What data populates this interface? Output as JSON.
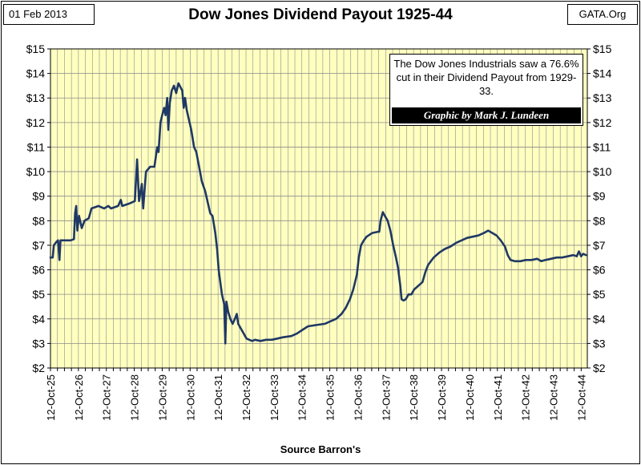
{
  "header": {
    "date": "01 Feb 2013",
    "site": "GATA.Org"
  },
  "chart_data": {
    "type": "line",
    "title": "Dow Jones Dividend Payout 1925-44",
    "xlabel": "Source Barron's",
    "ylabel": "",
    "ylim": [
      2,
      15
    ],
    "y_ticks": [
      "$2",
      "$3",
      "$4",
      "$5",
      "$6",
      "$7",
      "$8",
      "$9",
      "$10",
      "$11",
      "$12",
      "$13",
      "$14",
      "$15"
    ],
    "x_ticks": [
      "12-Oct-25",
      "12-Oct-26",
      "12-Oct-27",
      "12-Oct-28",
      "12-Oct-29",
      "12-Oct-30",
      "12-Oct-31",
      "12-Oct-32",
      "12-Oct-33",
      "12-Oct-34",
      "12-Oct-35",
      "12-Oct-36",
      "12-Oct-37",
      "12-Oct-38",
      "12-Oct-39",
      "12-Oct-40",
      "12-Oct-41",
      "12-Oct-42",
      "12-Oct-43",
      "12-Oct-44"
    ],
    "xlim": [
      1925.78,
      1945.0
    ],
    "grid": true,
    "line_color": "#1f3864",
    "plot_bg": "#ffffc0",
    "series": [
      {
        "name": "Dow Jones Dividend Payout",
        "points": [
          [
            1925.78,
            6.5
          ],
          [
            1925.86,
            6.5
          ],
          [
            1925.9,
            7.0
          ],
          [
            1926.0,
            7.15
          ],
          [
            1926.05,
            7.2
          ],
          [
            1926.1,
            6.4
          ],
          [
            1926.14,
            7.2
          ],
          [
            1926.3,
            7.2
          ],
          [
            1926.5,
            7.2
          ],
          [
            1926.62,
            7.25
          ],
          [
            1926.66,
            8.3
          ],
          [
            1926.7,
            8.6
          ],
          [
            1926.74,
            7.6
          ],
          [
            1926.8,
            8.2
          ],
          [
            1926.9,
            7.7
          ],
          [
            1927.0,
            8.0
          ],
          [
            1927.15,
            8.1
          ],
          [
            1927.25,
            8.5
          ],
          [
            1927.5,
            8.6
          ],
          [
            1927.7,
            8.5
          ],
          [
            1927.85,
            8.6
          ],
          [
            1927.95,
            8.5
          ],
          [
            1928.2,
            8.6
          ],
          [
            1928.3,
            8.85
          ],
          [
            1928.35,
            8.6
          ],
          [
            1928.6,
            8.7
          ],
          [
            1928.8,
            8.8
          ],
          [
            1928.88,
            10.5
          ],
          [
            1928.95,
            8.8
          ],
          [
            1929.05,
            9.5
          ],
          [
            1929.1,
            8.5
          ],
          [
            1929.2,
            10.0
          ],
          [
            1929.35,
            10.2
          ],
          [
            1929.5,
            10.2
          ],
          [
            1929.6,
            11.0
          ],
          [
            1929.65,
            10.8
          ],
          [
            1929.72,
            12.0
          ],
          [
            1929.78,
            12.3
          ],
          [
            1929.85,
            12.6
          ],
          [
            1929.9,
            12.3
          ],
          [
            1929.96,
            13.0
          ],
          [
            1930.0,
            11.7
          ],
          [
            1930.05,
            12.8
          ],
          [
            1930.12,
            13.3
          ],
          [
            1930.2,
            13.5
          ],
          [
            1930.28,
            13.2
          ],
          [
            1930.36,
            13.6
          ],
          [
            1930.5,
            13.3
          ],
          [
            1930.55,
            12.6
          ],
          [
            1930.6,
            13.0
          ],
          [
            1930.66,
            12.5
          ],
          [
            1930.72,
            12.2
          ],
          [
            1930.82,
            11.7
          ],
          [
            1930.92,
            11.0
          ],
          [
            1931.0,
            10.8
          ],
          [
            1931.1,
            10.2
          ],
          [
            1931.2,
            9.6
          ],
          [
            1931.32,
            9.2
          ],
          [
            1931.42,
            8.7
          ],
          [
            1931.5,
            8.3
          ],
          [
            1931.58,
            8.2
          ],
          [
            1931.68,
            7.5
          ],
          [
            1931.75,
            6.8
          ],
          [
            1931.8,
            6.0
          ],
          [
            1931.86,
            5.5
          ],
          [
            1931.92,
            5.0
          ],
          [
            1932.0,
            4.6
          ],
          [
            1932.04,
            3.0
          ],
          [
            1932.08,
            4.7
          ],
          [
            1932.14,
            4.3
          ],
          [
            1932.22,
            4.0
          ],
          [
            1932.3,
            3.8
          ],
          [
            1932.38,
            4.0
          ],
          [
            1932.45,
            4.2
          ],
          [
            1932.5,
            3.8
          ],
          [
            1932.6,
            3.6
          ],
          [
            1932.7,
            3.4
          ],
          [
            1932.8,
            3.2
          ],
          [
            1932.9,
            3.15
          ],
          [
            1933.0,
            3.1
          ],
          [
            1933.1,
            3.15
          ],
          [
            1933.3,
            3.1
          ],
          [
            1933.5,
            3.15
          ],
          [
            1933.7,
            3.15
          ],
          [
            1933.9,
            3.2
          ],
          [
            1934.1,
            3.25
          ],
          [
            1934.4,
            3.3
          ],
          [
            1934.6,
            3.4
          ],
          [
            1934.8,
            3.55
          ],
          [
            1935.0,
            3.7
          ],
          [
            1935.3,
            3.75
          ],
          [
            1935.6,
            3.8
          ],
          [
            1935.8,
            3.9
          ],
          [
            1936.0,
            4.0
          ],
          [
            1936.2,
            4.2
          ],
          [
            1936.35,
            4.45
          ],
          [
            1936.5,
            4.8
          ],
          [
            1936.62,
            5.2
          ],
          [
            1936.75,
            5.8
          ],
          [
            1936.82,
            6.5
          ],
          [
            1936.9,
            7.0
          ],
          [
            1937.0,
            7.2
          ],
          [
            1937.1,
            7.35
          ],
          [
            1937.3,
            7.5
          ],
          [
            1937.5,
            7.55
          ],
          [
            1937.55,
            7.55
          ],
          [
            1937.6,
            8.0
          ],
          [
            1937.68,
            8.35
          ],
          [
            1937.75,
            8.2
          ],
          [
            1937.85,
            8.0
          ],
          [
            1937.95,
            7.6
          ],
          [
            1938.05,
            7.0
          ],
          [
            1938.15,
            6.5
          ],
          [
            1938.22,
            6.1
          ],
          [
            1938.3,
            5.4
          ],
          [
            1938.35,
            4.8
          ],
          [
            1938.42,
            4.75
          ],
          [
            1938.5,
            4.8
          ],
          [
            1938.6,
            5.0
          ],
          [
            1938.7,
            5.0
          ],
          [
            1938.8,
            5.2
          ],
          [
            1938.9,
            5.3
          ],
          [
            1939.0,
            5.4
          ],
          [
            1939.1,
            5.5
          ],
          [
            1939.2,
            5.9
          ],
          [
            1939.3,
            6.2
          ],
          [
            1939.5,
            6.5
          ],
          [
            1939.7,
            6.7
          ],
          [
            1939.9,
            6.85
          ],
          [
            1940.1,
            6.95
          ],
          [
            1940.3,
            7.1
          ],
          [
            1940.5,
            7.2
          ],
          [
            1940.7,
            7.3
          ],
          [
            1940.9,
            7.35
          ],
          [
            1941.1,
            7.4
          ],
          [
            1941.3,
            7.5
          ],
          [
            1941.45,
            7.6
          ],
          [
            1941.6,
            7.5
          ],
          [
            1941.75,
            7.4
          ],
          [
            1941.9,
            7.2
          ],
          [
            1942.05,
            6.95
          ],
          [
            1942.15,
            6.6
          ],
          [
            1942.25,
            6.4
          ],
          [
            1942.4,
            6.35
          ],
          [
            1942.6,
            6.35
          ],
          [
            1942.8,
            6.4
          ],
          [
            1943.0,
            6.4
          ],
          [
            1943.2,
            6.45
          ],
          [
            1943.35,
            6.35
          ],
          [
            1943.5,
            6.4
          ],
          [
            1943.7,
            6.45
          ],
          [
            1943.9,
            6.5
          ],
          [
            1944.1,
            6.5
          ],
          [
            1944.3,
            6.55
          ],
          [
            1944.5,
            6.6
          ],
          [
            1944.62,
            6.55
          ],
          [
            1944.7,
            6.75
          ],
          [
            1944.78,
            6.55
          ],
          [
            1944.85,
            6.65
          ],
          [
            1944.95,
            6.6
          ]
        ]
      }
    ],
    "annotation": {
      "text": "The Dow Jones Industrials saw a 76.6% cut in their Dividend Payout from 1929-33.",
      "credit": "Graphic by Mark J. Lundeen"
    }
  }
}
